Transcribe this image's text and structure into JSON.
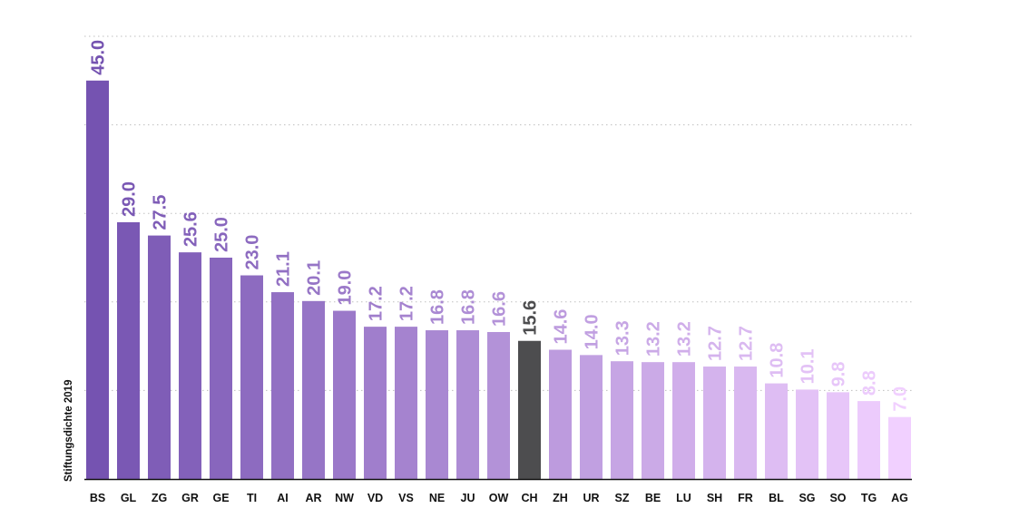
{
  "chart_data": {
    "type": "bar",
    "title": "",
    "xlabel": "",
    "ylabel": "Stiftungsdichte 2019",
    "categories": [
      "BS",
      "GL",
      "ZG",
      "GR",
      "GE",
      "TI",
      "AI",
      "AR",
      "NW",
      "VD",
      "VS",
      "NE",
      "JU",
      "OW",
      "CH",
      "ZH",
      "UR",
      "SZ",
      "BE",
      "LU",
      "SH",
      "FR",
      "BL",
      "SG",
      "SO",
      "TG",
      "AG"
    ],
    "values": [
      45.0,
      29.0,
      27.5,
      25.6,
      25.0,
      23.0,
      21.1,
      20.1,
      19.0,
      17.2,
      17.2,
      16.8,
      16.8,
      16.6,
      15.6,
      14.6,
      14.0,
      13.3,
      13.2,
      13.2,
      12.7,
      12.7,
      10.8,
      10.1,
      9.8,
      8.8,
      7.0
    ],
    "value_labels": [
      "45.0",
      "29.0",
      "27.5",
      "25.6",
      "25.0",
      "23.0",
      "21.1",
      "20.1",
      "19.0",
      "17.2",
      "17.2",
      "16.8",
      "16.8",
      "16.6",
      "15.6",
      "14.6",
      "14.0",
      "13.3",
      "13.2",
      "13.2",
      "12.7",
      "12.7",
      "10.8",
      "10.1",
      "9.8",
      "8.8",
      "7.0"
    ],
    "highlight_category": "CH",
    "ylim": [
      0,
      50
    ],
    "gridlines": [
      10,
      20,
      30,
      40,
      50
    ],
    "grid": true,
    "legend": false,
    "colors": {
      "gradient_start": "#7553b1",
      "gradient_end": "#f1d0ff",
      "highlight": "#4d4d4f",
      "axis": "#111111",
      "grid": "#bfbfbf"
    }
  }
}
